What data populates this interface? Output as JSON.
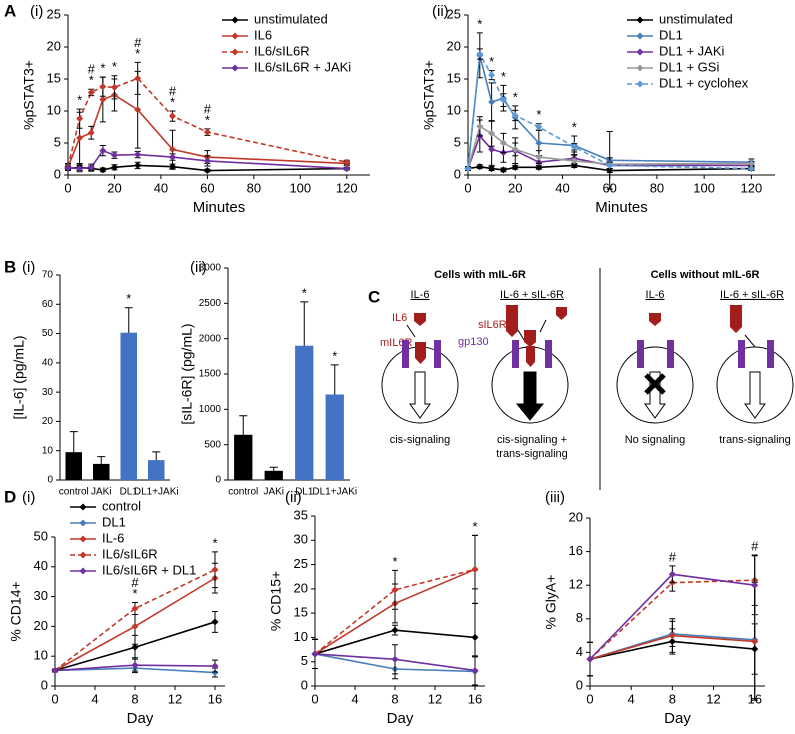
{
  "panel_letters": [
    "A",
    "B",
    "C",
    "D"
  ],
  "chart_data": [
    {
      "type": "line",
      "panel": "(i)",
      "xlabel": "Minutes",
      "ylabel": "%pSTAT3+",
      "legend": "upper right",
      "x": [
        0,
        5,
        10,
        15,
        20,
        30,
        45,
        60,
        120
      ],
      "xlim": [
        0,
        130
      ],
      "xticks": [
        0,
        20,
        40,
        60,
        80,
        100,
        120
      ],
      "ylim": [
        0,
        25
      ],
      "yticks": [
        0,
        5,
        10,
        15,
        20,
        25
      ],
      "series": [
        {
          "name": "unstimulated",
          "color": "#000000",
          "dash": false,
          "values": [
            1,
            1.2,
            1,
            0.8,
            1.2,
            1.5,
            1.3,
            0.7,
            1
          ],
          "errors": [
            0.3,
            0.5,
            0.4,
            0.3,
            0.4,
            0.5,
            0.4,
            0.2,
            0.2
          ]
        },
        {
          "name": "IL6",
          "color": "#c0392b",
          "dash": false,
          "values": [
            1.2,
            5.8,
            6.6,
            11.8,
            12.5,
            10.2,
            4,
            2.8,
            1.8
          ],
          "errors": [
            0.5,
            4,
            1,
            3.5,
            2.5,
            6,
            3,
            1,
            0.3
          ]
        },
        {
          "name": "IL6/sIL6R",
          "color": "#c0392b",
          "dash": true,
          "values": [
            1.3,
            8.8,
            12.9,
            13.8,
            13.7,
            15.1,
            9.2,
            6.7,
            2
          ],
          "errors": [
            0.5,
            1.5,
            0.5,
            1.5,
            1.8,
            2.5,
            0.8,
            0.5,
            0.3
          ]
        },
        {
          "name": "IL6/sIL6R + JAKi",
          "color": "#7030a0",
          "dash": false,
          "values": [
            1.1,
            1,
            1.2,
            3.8,
            3.1,
            3.2,
            2.8,
            2.2,
            1
          ],
          "errors": [
            0.3,
            0.5,
            0.5,
            0.8,
            0.5,
            0.5,
            0.5,
            0.8,
            0.2
          ]
        }
      ],
      "significance": [
        null,
        [
          "*"
        ],
        [
          "#",
          "*"
        ],
        [
          "*"
        ],
        [
          "*"
        ],
        [
          "#",
          "*"
        ],
        [
          "#",
          "*"
        ],
        [
          "#",
          "*"
        ],
        null
      ]
    },
    {
      "type": "line",
      "panel": "(ii)",
      "xlabel": "Minutes",
      "ylabel": "%pSTAT3+",
      "legend": "upper right",
      "x": [
        0,
        5,
        10,
        15,
        20,
        30,
        45,
        60,
        120
      ],
      "xlim": [
        0,
        130
      ],
      "xticks": [
        0,
        20,
        40,
        60,
        80,
        100,
        120
      ],
      "ylim": [
        0,
        25
      ],
      "yticks": [
        0,
        5,
        10,
        15,
        20,
        25
      ],
      "series": [
        {
          "name": "unstimulated",
          "color": "#000000",
          "dash": false,
          "values": [
            1,
            1.3,
            1,
            0.8,
            1.2,
            1.2,
            1.5,
            0.7,
            1
          ],
          "errors": [
            0.3,
            0.3,
            0.3,
            0.3,
            0.3,
            0.3,
            0.3,
            0.3,
            0.2
          ]
        },
        {
          "name": "DL1",
          "color": "#4a7ebb",
          "dash": false,
          "values": [
            1,
            18.7,
            11.4,
            12,
            9,
            5,
            4.6,
            2.3,
            2
          ],
          "errors": [
            0.3,
            3.5,
            3,
            2,
            1.8,
            2,
            1.5,
            4.5,
            0.5
          ]
        },
        {
          "name": "DL1 + JAKi",
          "color": "#7030a0",
          "dash": false,
          "values": [
            1,
            6.1,
            4,
            3.5,
            3.8,
            2,
            2.6,
            1.5,
            1.5
          ],
          "errors": [
            0.3,
            2.5,
            2.5,
            1.5,
            2,
            1,
            1,
            0.5,
            0.3
          ]
        },
        {
          "name": "DL1 + GSi",
          "color": "#999999",
          "dash": false,
          "values": [
            1,
            7.6,
            6.5,
            5,
            4,
            2.8,
            2.2,
            1.7,
            1.8
          ],
          "errors": [
            0.3,
            1.5,
            2,
            1.5,
            1,
            1,
            1,
            1,
            0.3
          ]
        },
        {
          "name": "DL1 + cyclohex",
          "color": "#5b9bd5",
          "dash": true,
          "values": [
            1,
            18.9,
            15.6,
            11.7,
            9.3,
            7.5,
            4.4,
            1.5,
            1
          ],
          "errors": [
            0.3,
            0.8,
            0.7,
            1,
            0.8,
            0.5,
            0.5,
            0.5,
            0.3
          ]
        }
      ],
      "significance": [
        null,
        [
          "*"
        ],
        [
          "*"
        ],
        [
          "*"
        ],
        [
          "*"
        ],
        [
          "*"
        ],
        [
          "*"
        ],
        null,
        null
      ]
    },
    {
      "type": "bar",
      "panel": "(i)",
      "ylabel": "[IL-6] (pg/mL)",
      "categories": [
        "control",
        "JAKi",
        "DL1",
        "DL1+JAKi"
      ],
      "values": [
        9.5,
        5.5,
        50.3,
        6.8
      ],
      "errors": [
        7,
        2.5,
        8.5,
        2.8
      ],
      "colors": [
        "#000000",
        "#000000",
        "#4472c4",
        "#4472c4"
      ],
      "ylim": [
        0,
        70
      ],
      "yticks": [
        0,
        10,
        20,
        30,
        40,
        50,
        60,
        70
      ],
      "significance": [
        null,
        null,
        [
          "*"
        ],
        null
      ]
    },
    {
      "type": "bar",
      "panel": "(ii)",
      "ylabel": "[sIL-6R] (pg/mL)",
      "categories": [
        "control",
        "JAKi",
        "DL1",
        "DL1+JAKi"
      ],
      "values": [
        640,
        130,
        1900,
        1210
      ],
      "errors": [
        270,
        50,
        620,
        420
      ],
      "colors": [
        "#000000",
        "#000000",
        "#4472c4",
        "#4472c4"
      ],
      "ylim": [
        0,
        3000
      ],
      "yticks": [
        0,
        500,
        1000,
        1500,
        2000,
        2500,
        3000
      ],
      "significance": [
        null,
        null,
        [
          "*"
        ],
        [
          "*"
        ]
      ]
    },
    {
      "type": "line",
      "panel": "(i)",
      "xlabel": "Day",
      "ylabel": "% CD14+",
      "legend": "upper left",
      "x": [
        0,
        8,
        16
      ],
      "xlim": [
        0,
        17
      ],
      "xticks": [
        0,
        4,
        8,
        12,
        16
      ],
      "ylim": [
        0,
        50
      ],
      "yticks": [
        0,
        10,
        20,
        30,
        40,
        50
      ],
      "series": [
        {
          "name": "control",
          "color": "#000000",
          "dash": false,
          "values": [
            5.2,
            13,
            21.5
          ],
          "errors": [
            0.5,
            4,
            3.5
          ]
        },
        {
          "name": "DL1",
          "color": "#4a7ebb",
          "dash": false,
          "values": [
            5.2,
            6,
            4.5
          ],
          "errors": [
            0.5,
            1,
            1.5
          ]
        },
        {
          "name": "IL-6",
          "color": "#c0392b",
          "dash": false,
          "values": [
            5.2,
            20,
            36.2
          ],
          "errors": [
            0.5,
            6,
            5
          ]
        },
        {
          "name": "IL6/sIL6R",
          "color": "#c0392b",
          "dash": true,
          "values": [
            5.2,
            26,
            39
          ],
          "errors": [
            0.5,
            2,
            6
          ]
        },
        {
          "name": "IL6/sIL6R + DL1",
          "color": "#7030a0",
          "dash": false,
          "values": [
            5.2,
            7,
            6.7
          ],
          "errors": [
            0.5,
            2.5,
            2
          ]
        }
      ],
      "significance": [
        null,
        [
          "#",
          "*"
        ],
        [
          "*"
        ]
      ]
    },
    {
      "type": "line",
      "panel": "(ii)",
      "xlabel": "Day",
      "ylabel": "% CD15+",
      "legend": "none",
      "x": [
        0,
        8,
        16
      ],
      "xlim": [
        0,
        17
      ],
      "xticks": [
        0,
        4,
        8,
        12,
        16
      ],
      "ylim": [
        0,
        35
      ],
      "yticks": [
        0,
        5,
        10,
        15,
        20,
        25,
        30,
        35
      ],
      "series": [
        {
          "name": "control",
          "color": "#000000",
          "dash": false,
          "values": [
            6.6,
            11.5,
            10
          ],
          "errors": [
            3,
            1,
            10
          ]
        },
        {
          "name": "DL1",
          "color": "#4a7ebb",
          "dash": false,
          "values": [
            6.6,
            3.5,
            3
          ],
          "errors": [
            3,
            2,
            3
          ]
        },
        {
          "name": "IL-6",
          "color": "#c0392b",
          "dash": false,
          "values": [
            6.6,
            17,
            24
          ],
          "errors": [
            3,
            4,
            7
          ]
        },
        {
          "name": "IL6/sIL6R",
          "color": "#c0392b",
          "dash": true,
          "values": [
            6.6,
            19.8,
            24
          ],
          "errors": [
            3,
            4,
            7
          ]
        },
        {
          "name": "IL6/sIL6R + DL1",
          "color": "#7030a0",
          "dash": false,
          "values": [
            6.6,
            5.5,
            3.2
          ],
          "errors": [
            3,
            3,
            3
          ]
        }
      ],
      "significance": [
        null,
        [
          "*"
        ],
        [
          "*"
        ]
      ]
    },
    {
      "type": "line",
      "panel": "(iii)",
      "xlabel": "Day",
      "ylabel": "% GlyA+",
      "legend": "none",
      "x": [
        0,
        8,
        16
      ],
      "xlim": [
        0,
        17
      ],
      "xticks": [
        0,
        4,
        8,
        12,
        16
      ],
      "ylim": [
        0,
        20
      ],
      "yticks": [
        0,
        4,
        8,
        12,
        16,
        20
      ],
      "series": [
        {
          "name": "control",
          "color": "#000000",
          "dash": false,
          "values": [
            3.2,
            5.3,
            4.4
          ],
          "errors": [
            2,
            1.5,
            3
          ]
        },
        {
          "name": "DL1",
          "color": "#4a7ebb",
          "dash": false,
          "values": [
            3.2,
            6.2,
            5.5
          ],
          "errors": [
            2,
            1.5,
            7
          ]
        },
        {
          "name": "IL-6",
          "color": "#c0392b",
          "dash": false,
          "values": [
            3.2,
            6,
            5.3
          ],
          "errors": [
            2,
            2,
            7
          ]
        },
        {
          "name": "IL6/sIL6R",
          "color": "#c0392b",
          "dash": true,
          "values": [
            3.2,
            12.3,
            12.6
          ],
          "errors": [
            2,
            1,
            3
          ]
        },
        {
          "name": "IL6/sIL6R + DL1",
          "color": "#7030a0",
          "dash": false,
          "values": [
            3.2,
            13.3,
            12
          ],
          "errors": [
            2,
            1,
            3.5
          ]
        }
      ],
      "significance": [
        null,
        [
          "#"
        ],
        [
          "#"
        ]
      ]
    }
  ],
  "diagram": {
    "left_title": "Cells with mIL-6R",
    "right_title": "Cells without mIL-6R",
    "columns": [
      "IL-6",
      "IL-6 + sIL-6R",
      "IL-6",
      "IL-6 + sIL-6R"
    ],
    "labels": {
      "ligand": "IL6",
      "membrane_receptor": "mIL6R",
      "soluble_receptor": "sIL6R",
      "gp130": "gp130"
    },
    "outcomes": [
      "cis-signaling",
      "cis-signaling +",
      "trans-signaling",
      "No signaling",
      "trans-signaling"
    ]
  }
}
